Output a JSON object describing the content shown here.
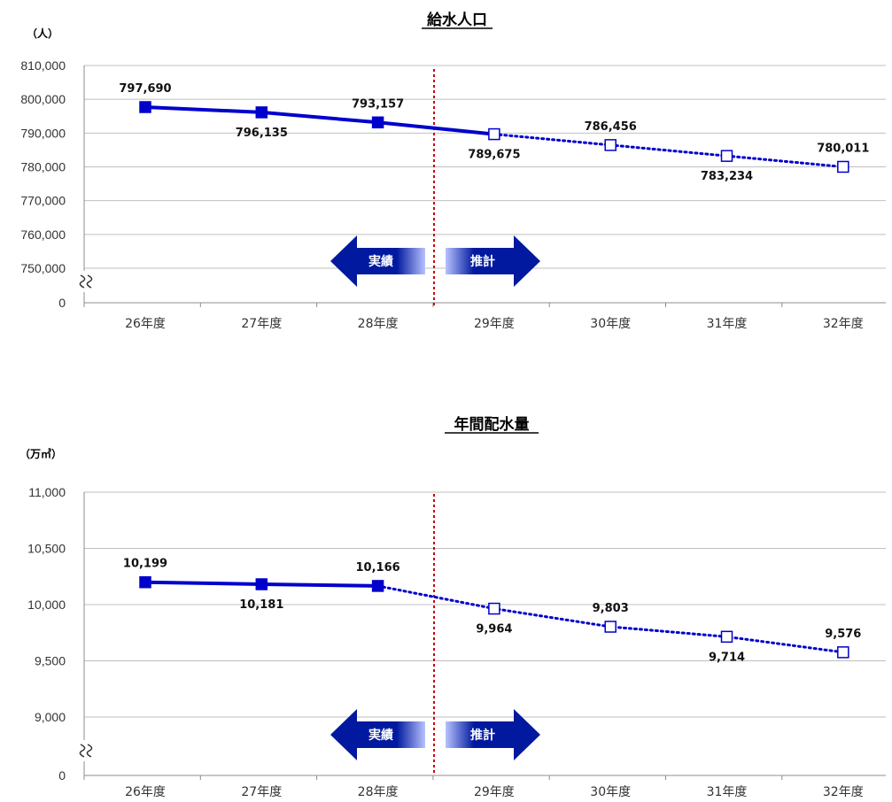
{
  "colors": {
    "series": "#0000cc",
    "divider": "#cc0000",
    "arrow": "#00199e",
    "grid": "#bfbfbf"
  },
  "chart_data": [
    {
      "type": "line",
      "title": "給水人口",
      "unit": "（人）",
      "categories": [
        "26年度",
        "27年度",
        "28年度",
        "29年度",
        "30年度",
        "31年度",
        "32年度"
      ],
      "values": [
        797690,
        796135,
        793157,
        789675,
        786456,
        783234,
        780011
      ],
      "value_labels": [
        "797,690",
        "796,135",
        "793,157",
        "789,675",
        "786,456",
        "783,234",
        "780,011"
      ],
      "label_side": [
        "above",
        "below",
        "above",
        "below",
        "above",
        "below",
        "above"
      ],
      "actual_count": 3,
      "forecast_from_index": 3,
      "yticks": [
        {
          "label": "810,000",
          "value": 810000
        },
        {
          "label": "800,000",
          "value": 800000
        },
        {
          "label": "790,000",
          "value": 790000
        },
        {
          "label": "780,000",
          "value": 780000
        },
        {
          "label": "770,000",
          "value": 770000
        },
        {
          "label": "760,000",
          "value": 760000
        },
        {
          "label": "750,000",
          "value": 750000
        },
        {
          "label": "0",
          "value": 0
        }
      ],
      "ylim": [
        750000,
        810000
      ],
      "axis_break": true,
      "grid": true,
      "arrow_left_label": "実績",
      "arrow_right_label": "推計"
    },
    {
      "type": "line",
      "title": "年間配水量",
      "unit": "（万㎥）",
      "categories": [
        "26年度",
        "27年度",
        "28年度",
        "29年度",
        "30年度",
        "31年度",
        "32年度"
      ],
      "values": [
        10199,
        10181,
        10166,
        9964,
        9803,
        9714,
        9576
      ],
      "value_labels": [
        "10,199",
        "10,181",
        "10,166",
        "9,964",
        "9,803",
        "9,714",
        "9,576"
      ],
      "label_side": [
        "above",
        "below",
        "above",
        "below",
        "above",
        "below",
        "above"
      ],
      "actual_count": 3,
      "forecast_from_index": 2,
      "yticks": [
        {
          "label": "11,000",
          "value": 11000
        },
        {
          "label": "10,500",
          "value": 10500
        },
        {
          "label": "10,000",
          "value": 10000
        },
        {
          "label": "9,500",
          "value": 9500
        },
        {
          "label": "9,000",
          "value": 9000
        },
        {
          "label": "0",
          "value": 0
        }
      ],
      "ylim": [
        9000,
        11000
      ],
      "axis_break": true,
      "grid": true,
      "arrow_left_label": "実績",
      "arrow_right_label": "推計"
    }
  ]
}
